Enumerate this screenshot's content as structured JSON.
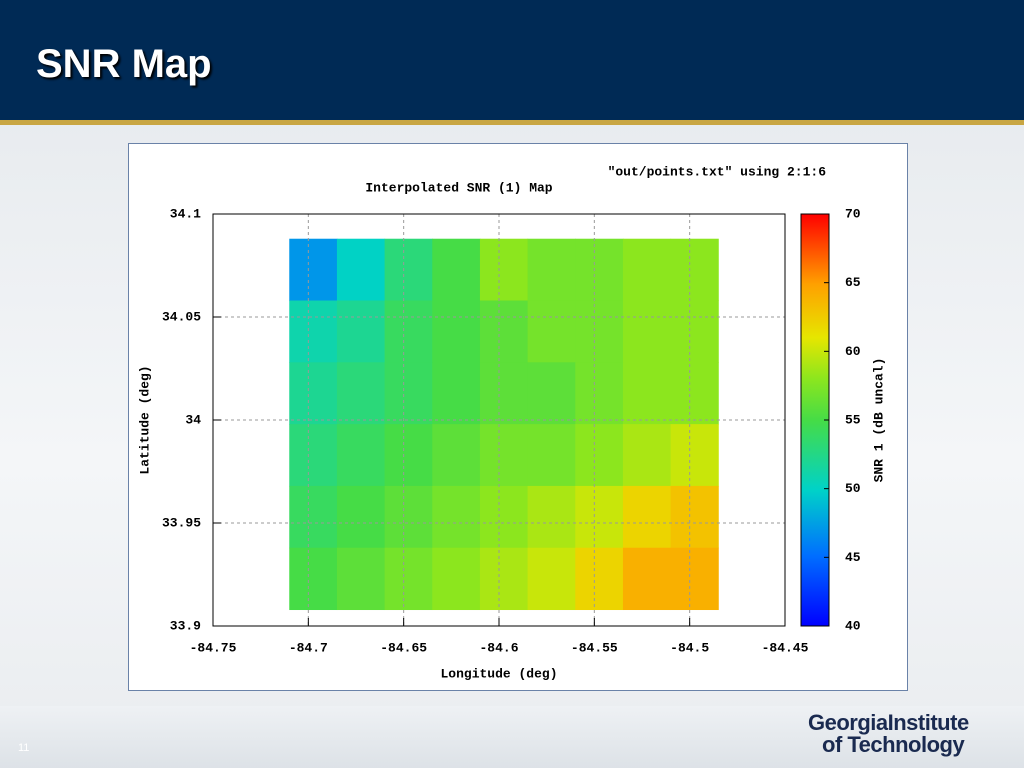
{
  "slide": {
    "title": "SNR Map",
    "page_number": "11",
    "logo": [
      "GeorgiaInstitute",
      "of Technology"
    ]
  },
  "chart_data": {
    "type": "heatmap",
    "title": "Interpolated SNR (1) Map",
    "legend_label": "\"out/points.txt\" using 2:1:6",
    "x_label": "Longitude (deg)",
    "y_label": "Latitude (deg)",
    "colorbar_label": "SNR 1 (dB uncal)",
    "xlim": [
      -84.75,
      -84.45
    ],
    "xticks": [
      -84.75,
      -84.7,
      -84.65,
      -84.6,
      -84.55,
      -84.5,
      -84.45
    ],
    "ylim": [
      33.9,
      34.1
    ],
    "yticks": [
      33.9,
      33.95,
      34,
      34.05,
      34.1
    ],
    "zlim": [
      40,
      70
    ],
    "zticks": [
      40,
      45,
      50,
      55,
      60,
      65,
      70
    ],
    "grid": true,
    "x": [
      -84.6975,
      -84.6725,
      -84.6475,
      -84.6225,
      -84.5975,
      -84.5725,
      -84.5475,
      -84.5225,
      -84.4975
    ],
    "y": [
      34.073,
      34.043,
      34.013,
      33.983,
      33.953,
      33.923
    ],
    "values": [
      [
        47,
        50,
        53,
        55,
        58,
        57,
        57,
        58,
        58
      ],
      [
        51,
        52,
        54,
        55,
        56,
        57,
        57,
        58,
        58
      ],
      [
        52,
        53,
        54,
        55,
        56,
        56,
        57,
        58,
        58
      ],
      [
        53,
        54,
        55,
        56,
        57,
        57,
        58,
        59,
        60
      ],
      [
        54,
        55,
        56,
        57,
        58,
        59,
        60,
        62,
        63
      ],
      [
        55,
        56,
        57,
        58,
        59,
        60,
        62,
        64,
        64
      ]
    ]
  }
}
